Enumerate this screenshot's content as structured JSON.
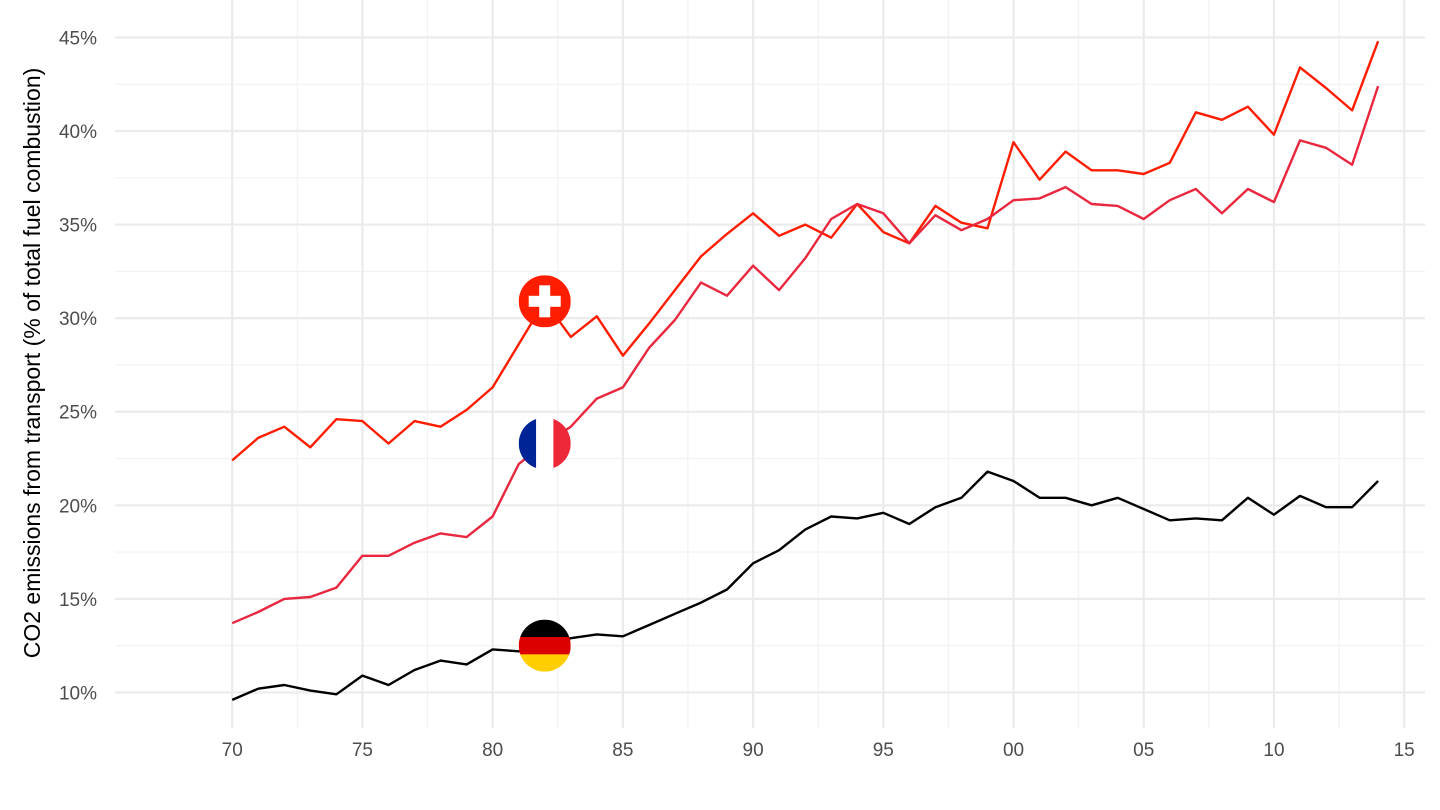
{
  "chart_data": {
    "type": "line",
    "ylabel": "CO2 emissions from transport (% of total fuel combustion)",
    "xlim": [
      1965.5,
      2015.8
    ],
    "ylim": [
      8.1,
      47.0
    ],
    "x_ticks": [
      {
        "value": 1970,
        "label": "70"
      },
      {
        "value": 1975,
        "label": "75"
      },
      {
        "value": 1980,
        "label": "80"
      },
      {
        "value": 1985,
        "label": "85"
      },
      {
        "value": 1990,
        "label": "90"
      },
      {
        "value": 1995,
        "label": "95"
      },
      {
        "value": 2000,
        "label": "00"
      },
      {
        "value": 2005,
        "label": "05"
      },
      {
        "value": 2010,
        "label": "10"
      },
      {
        "value": 2015,
        "label": "15"
      }
    ],
    "y_ticks": [
      {
        "value": 10,
        "label": "10%"
      },
      {
        "value": 15,
        "label": "15%"
      },
      {
        "value": 20,
        "label": "20%"
      },
      {
        "value": 25,
        "label": "25%"
      },
      {
        "value": 30,
        "label": "30%"
      },
      {
        "value": 35,
        "label": "35%"
      },
      {
        "value": 40,
        "label": "40%"
      },
      {
        "value": 45,
        "label": "45%"
      }
    ],
    "grid": true,
    "x": [
      1970,
      1971,
      1972,
      1973,
      1974,
      1975,
      1976,
      1977,
      1978,
      1979,
      1980,
      1981,
      1982,
      1983,
      1984,
      1985,
      1986,
      1987,
      1988,
      1989,
      1990,
      1991,
      1992,
      1993,
      1994,
      1995,
      1996,
      1997,
      1998,
      1999,
      2000,
      2001,
      2002,
      2003,
      2004,
      2005,
      2006,
      2007,
      2008,
      2009,
      2010,
      2011,
      2012,
      2013,
      2014
    ],
    "series": [
      {
        "color": "#ff1d00",
        "flag": "switzerland-flag-icon",
        "flag_x": 1982,
        "values": [
          22.4,
          23.6,
          24.2,
          23.1,
          24.6,
          24.5,
          23.3,
          24.5,
          24.2,
          25.1,
          26.3,
          28.6,
          30.9,
          29.0,
          30.1,
          28.0,
          29.7,
          31.5,
          33.3,
          34.5,
          35.6,
          34.4,
          35.0,
          34.3,
          36.1,
          34.6,
          34.0,
          36.0,
          35.1,
          34.8,
          39.4,
          37.4,
          38.9,
          37.9,
          37.9,
          37.7,
          38.3,
          41.0,
          40.6,
          41.3,
          39.8,
          43.4,
          42.3,
          41.1,
          44.8
        ]
      },
      {
        "color": "#e9273f",
        "flag": "france-flag-icon",
        "flag_x": 1982,
        "values": [
          13.7,
          14.3,
          15.0,
          15.1,
          15.6,
          17.3,
          17.3,
          18.0,
          18.5,
          18.3,
          19.4,
          22.2,
          23.3,
          24.2,
          25.7,
          26.3,
          28.4,
          29.9,
          31.9,
          31.2,
          32.8,
          31.5,
          33.2,
          35.3,
          36.1,
          35.6,
          34.0,
          35.5,
          34.7,
          35.3,
          36.3,
          36.4,
          37.0,
          36.1,
          36.0,
          35.3,
          36.3,
          36.9,
          35.6,
          36.9,
          36.2,
          39.5,
          39.1,
          38.2,
          42.4
        ]
      },
      {
        "color": "#000000",
        "flag": "germany-flag-icon",
        "flag_x": 1982,
        "values": [
          9.6,
          10.2,
          10.4,
          10.1,
          9.9,
          10.9,
          10.4,
          11.2,
          11.7,
          11.5,
          12.3,
          12.2,
          12.5,
          12.9,
          13.1,
          13.0,
          13.6,
          14.2,
          14.8,
          15.5,
          16.9,
          17.6,
          18.7,
          19.4,
          19.3,
          19.6,
          19.0,
          19.9,
          20.4,
          21.8,
          21.3,
          20.4,
          20.4,
          20.0,
          20.4,
          19.8,
          19.2,
          19.3,
          19.2,
          20.4,
          19.5,
          20.5,
          19.9,
          19.9,
          21.3
        ]
      }
    ]
  }
}
